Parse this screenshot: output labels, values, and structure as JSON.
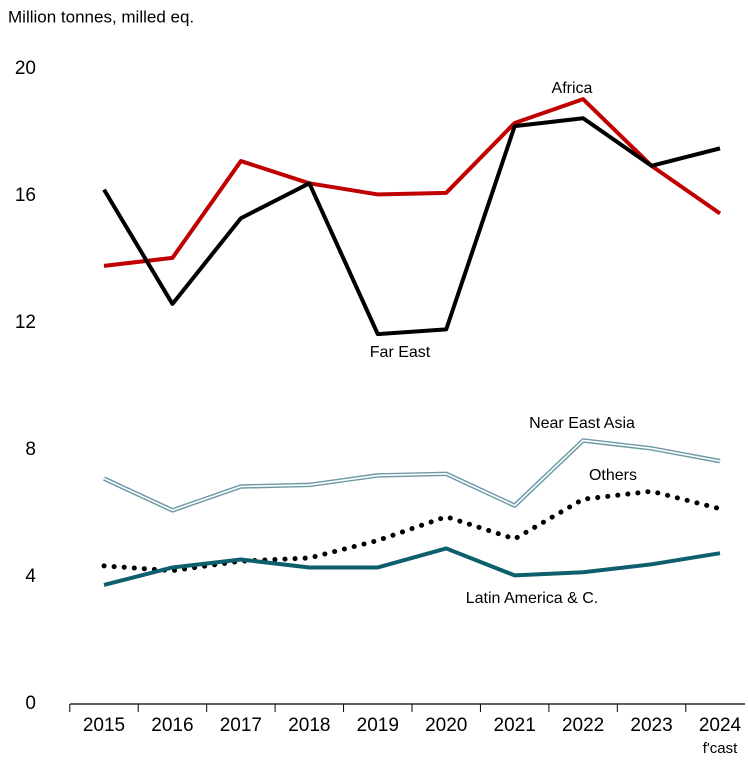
{
  "chart_data": {
    "type": "line",
    "y_axis_label": "Million tonnes, milled eq.",
    "categories": [
      "2015",
      "2016",
      "2017",
      "2018",
      "2019",
      "2020",
      "2021",
      "2022",
      "2023",
      "2024"
    ],
    "category_note": "f'cast",
    "series": [
      {
        "name": "Africa",
        "color": "#c00000",
        "style": "solid",
        "values": [
          13.8,
          14.05,
          17.1,
          16.4,
          16.05,
          16.1,
          18.3,
          19.05,
          16.95,
          15.45
        ]
      },
      {
        "name": "Far East",
        "color": "#000000",
        "style": "solid",
        "values": [
          16.2,
          12.6,
          15.3,
          16.4,
          11.65,
          11.8,
          18.2,
          18.45,
          16.95,
          17.5
        ]
      },
      {
        "name": "Near East Asia",
        "color": "#6e9aa8",
        "style": "double",
        "values": [
          7.1,
          6.1,
          6.85,
          6.9,
          7.2,
          7.25,
          6.25,
          8.3,
          8.05,
          7.65
        ]
      },
      {
        "name": "Others",
        "color": "#000000",
        "style": "dotted",
        "values": [
          4.35,
          4.2,
          4.5,
          4.6,
          5.15,
          5.9,
          5.2,
          6.45,
          6.7,
          6.15
        ]
      },
      {
        "name": "Latin America & C.",
        "color": "#0e5f6e",
        "style": "solid",
        "values": [
          3.75,
          4.3,
          4.55,
          4.3,
          4.3,
          4.9,
          4.05,
          4.15,
          4.4,
          4.75
        ]
      }
    ],
    "ylim": [
      0,
      20
    ],
    "yticks": [
      0,
      4,
      8,
      12,
      16,
      20
    ],
    "grid": false
  }
}
